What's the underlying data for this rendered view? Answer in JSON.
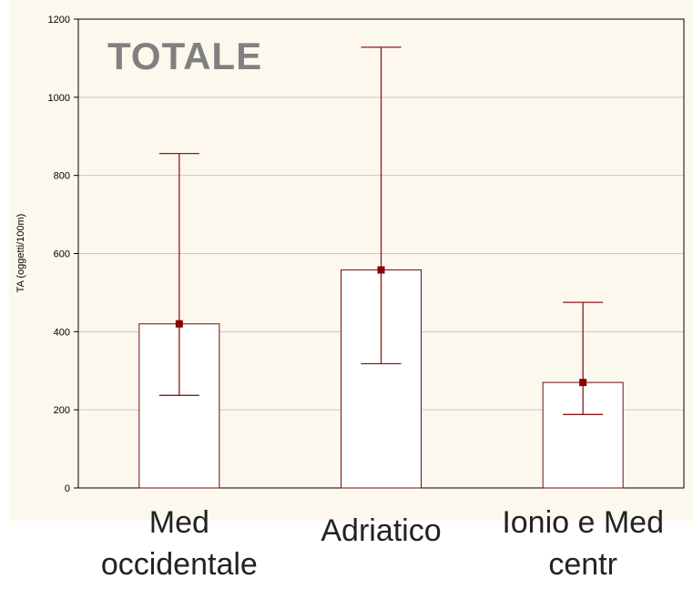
{
  "chart_data": {
    "type": "bar",
    "title": "TOTALE",
    "ylabel": "TA (oggetti/100m)",
    "xlabel": "",
    "ylim": [
      0,
      1200
    ],
    "yticks": [
      0,
      200,
      400,
      600,
      800,
      1000,
      1200
    ],
    "categories": [
      "Med\noccidentale",
      "Adriatico",
      "Ionio e Med\ncentr"
    ],
    "values": [
      420,
      558,
      270
    ],
    "error_low": [
      237,
      318,
      188
    ],
    "error_high": [
      856,
      1128,
      475
    ],
    "grid": true,
    "colors": {
      "bar_fill": "#ffffff",
      "bar_stroke": "#6b0f0f",
      "error_bar": "#8b1a1a",
      "marker": "#8b0000",
      "grid": "#c8c8c8",
      "plot_background": "#fdf8ee",
      "title": "#808080"
    }
  }
}
